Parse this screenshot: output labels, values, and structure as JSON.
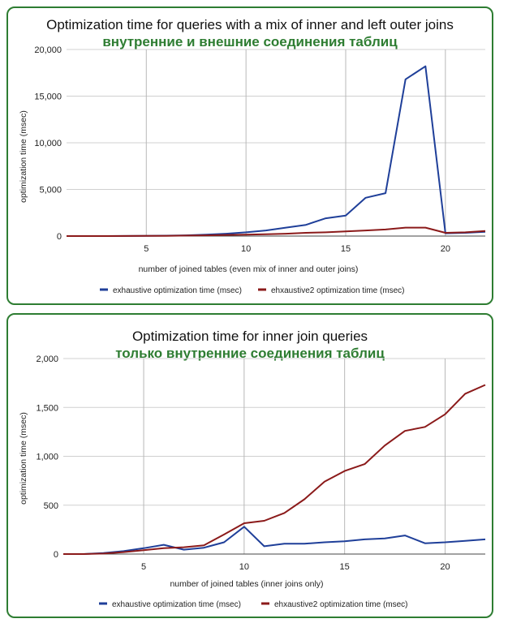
{
  "chart_data": [
    {
      "type": "line",
      "title": "Optimization time for queries with a mix of inner and left outer joins",
      "subtitle": "внутренние и внешние соединения таблиц",
      "xlabel": "number of joined tables (even mix of inner and outer joins)",
      "ylabel": "optimization time (msec)",
      "x": [
        1,
        2,
        3,
        4,
        5,
        6,
        7,
        8,
        9,
        10,
        11,
        12,
        13,
        14,
        15,
        16,
        17,
        18,
        19,
        20,
        21,
        22
      ],
      "xlim": [
        1,
        22
      ],
      "ylim": [
        0,
        20000
      ],
      "x_ticks": [
        5,
        10,
        15,
        20
      ],
      "y_ticks": [
        0,
        5000,
        10000,
        15000,
        20000
      ],
      "y_tick_labels": [
        "0",
        "5,000",
        "10,000",
        "15,000",
        "20,000"
      ],
      "grid": true,
      "legend_position": "bottom",
      "series": [
        {
          "name": "exhaustive optimization time (msec)",
          "color": "#1f3f99",
          "values": [
            0,
            0,
            0,
            10,
            20,
            40,
            80,
            150,
            250,
            400,
            600,
            900,
            1200,
            1900,
            2200,
            4100,
            4600,
            16800,
            18200,
            300,
            350,
            450
          ]
        },
        {
          "name": "ehxaustive2 optimization time (msec)",
          "color": "#8b1a1a",
          "values": [
            0,
            0,
            0,
            10,
            20,
            30,
            50,
            80,
            120,
            150,
            200,
            250,
            350,
            400,
            500,
            600,
            700,
            900,
            900,
            350,
            400,
            550
          ]
        }
      ]
    },
    {
      "type": "line",
      "title": "Optimization time for inner join queries",
      "subtitle": "только внутренние соединения таблиц",
      "xlabel": "number of joined tables (inner joins only)",
      "ylabel": "optimization time (msec)",
      "x": [
        1,
        2,
        3,
        4,
        5,
        6,
        7,
        8,
        9,
        10,
        11,
        12,
        13,
        14,
        15,
        16,
        17,
        18,
        19,
        20,
        21,
        22
      ],
      "xlim": [
        1,
        22
      ],
      "ylim": [
        0,
        2000
      ],
      "x_ticks": [
        5,
        10,
        15,
        20
      ],
      "y_ticks": [
        0,
        500,
        1000,
        1500,
        2000
      ],
      "y_tick_labels": [
        "0",
        "500",
        "1,000",
        "1,500",
        "2,000"
      ],
      "grid": true,
      "legend_position": "bottom",
      "series": [
        {
          "name": "exhaustive optimization time (msec)",
          "color": "#1f3f99",
          "values": [
            0,
            0,
            10,
            30,
            60,
            95,
            45,
            65,
            120,
            280,
            80,
            105,
            105,
            120,
            130,
            150,
            160,
            190,
            110,
            120,
            135,
            150
          ]
        },
        {
          "name": "ehxaustive2 optimization time (msec)",
          "color": "#8b1a1a",
          "values": [
            0,
            0,
            5,
            20,
            40,
            60,
            70,
            90,
            200,
            315,
            340,
            420,
            560,
            740,
            850,
            920,
            1110,
            1260,
            1300,
            1430,
            1640,
            1730
          ]
        }
      ]
    }
  ]
}
